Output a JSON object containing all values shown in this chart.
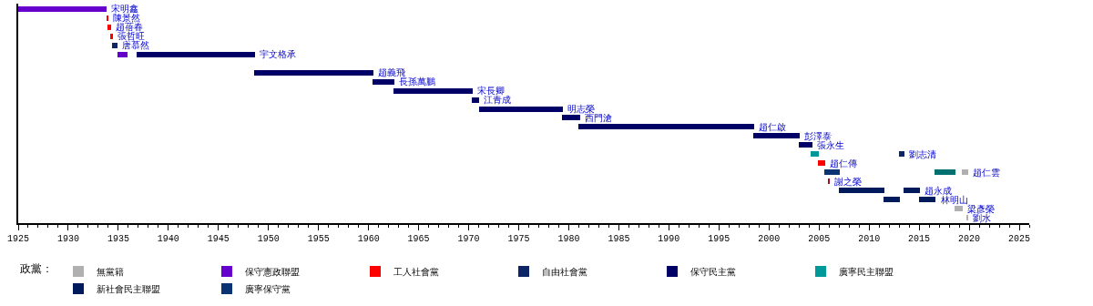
{
  "chart_data": {
    "type": "bar",
    "orientation": "horizontal",
    "legend_title": "政黨：",
    "legend": "bottom",
    "tick_labels": "x",
    "grid": false,
    "categories": [
      "宋明鑫",
      "陳景然",
      "趙蓓春",
      "張哲旺",
      "唐慕然",
      "宇文格承",
      null,
      "趙義飛",
      "長孫萬鵬",
      "宋長卿",
      "江青成",
      "明志榮",
      "西門滄",
      "趙仁啟",
      "彭澤泰",
      "張永生",
      "劉志清",
      "趙仁傳",
      "趙仁雲",
      "謝之榮",
      "趙永成",
      "林明山",
      "梁彥榮",
      "劉水"
    ],
    "xlim": [
      1925,
      2026
    ],
    "xticks": [
      1925,
      1930,
      1935,
      1940,
      1945,
      1950,
      1955,
      1960,
      1965,
      1970,
      1975,
      1980,
      1985,
      1990,
      1995,
      2000,
      2005,
      2010,
      2015,
      2020,
      2025
    ],
    "series": [
      {
        "name": "無黨籍",
        "color": "#b0b0b0",
        "base": [
          null,
          null,
          null,
          null,
          null,
          null,
          null,
          null,
          null,
          null,
          null,
          null,
          null,
          null,
          null,
          null,
          null,
          null,
          2019.3,
          null,
          null,
          null,
          2018.5,
          2019.8
        ],
        "values": [
          null,
          null,
          null,
          null,
          null,
          null,
          null,
          null,
          null,
          null,
          null,
          null,
          null,
          null,
          null,
          null,
          null,
          null,
          0.6,
          null,
          null,
          null,
          0.9,
          0.1
        ]
      },
      {
        "name": "保守憲政聯盟",
        "color": "#6600cc",
        "base": [
          1925,
          null,
          null,
          null,
          null,
          1934.9,
          null,
          null,
          null,
          null,
          null,
          null,
          null,
          null,
          null,
          null,
          null,
          null,
          null,
          null,
          null,
          null,
          null,
          null
        ],
        "values": [
          8.8,
          null,
          null,
          null,
          null,
          1.0,
          null,
          null,
          null,
          null,
          null,
          null,
          null,
          null,
          null,
          null,
          null,
          null,
          null,
          null,
          null,
          null,
          null,
          null
        ]
      },
      {
        "name": "工人社會黨",
        "color": "#ff0000",
        "base": [
          null,
          1933.8,
          1933.9,
          1934.2,
          null,
          null,
          null,
          null,
          null,
          null,
          null,
          null,
          null,
          null,
          null,
          null,
          null,
          2004.9,
          null,
          null,
          null,
          null,
          null,
          null
        ],
        "values": [
          null,
          0.2,
          0.4,
          0.3,
          null,
          null,
          null,
          null,
          null,
          null,
          null,
          null,
          null,
          null,
          null,
          null,
          null,
          0.7,
          null,
          null,
          null,
          null,
          null,
          null
        ]
      },
      {
        "name": "自由社會黨",
        "color": "#0d2466",
        "base": [
          null,
          null,
          null,
          null,
          1934.4,
          null,
          null,
          null,
          null,
          null,
          null,
          null,
          null,
          null,
          null,
          null,
          2013.0,
          null,
          null,
          null,
          null,
          null,
          null,
          null
        ],
        "values": [
          null,
          null,
          null,
          null,
          0.5,
          null,
          null,
          null,
          null,
          null,
          null,
          null,
          null,
          null,
          null,
          null,
          0.5,
          null,
          null,
          null,
          null,
          null,
          null,
          null
        ]
      },
      {
        "name": "保守民主黨",
        "color": "#000066",
        "base": [
          null,
          null,
          null,
          null,
          null,
          1936.8,
          null,
          1948.6,
          1960.4,
          1962.5,
          1970.3,
          1971.0,
          1979.3,
          1981.0,
          1998.4,
          2003.0,
          null,
          null,
          null,
          null,
          null,
          null,
          null,
          null
        ],
        "values": [
          null,
          null,
          null,
          null,
          null,
          11.9,
          null,
          11.9,
          2.2,
          7.9,
          0.7,
          8.4,
          1.8,
          17.5,
          4.7,
          1.3,
          null,
          null,
          null,
          null,
          null,
          null,
          null,
          null
        ]
      },
      {
        "name": "廣寧民主聯盟",
        "color": "#009999",
        "base": [
          null,
          null,
          null,
          null,
          null,
          null,
          null,
          null,
          null,
          null,
          null,
          null,
          null,
          null,
          null,
          null,
          2004.2,
          null,
          null,
          null,
          null,
          null,
          null,
          null
        ],
        "values": [
          null,
          null,
          null,
          null,
          null,
          null,
          null,
          null,
          null,
          null,
          null,
          null,
          null,
          null,
          null,
          null,
          0.8,
          null,
          null,
          null,
          null,
          null,
          null,
          null
        ]
      },
      {
        "name": "新社會民主聯盟",
        "color": "#001a5c",
        "base": [
          null,
          null,
          null,
          null,
          null,
          null,
          null,
          null,
          null,
          null,
          null,
          null,
          null,
          null,
          null,
          null,
          null,
          null,
          null,
          null,
          2007.0,
          2011.4,
          null,
          null
        ],
        "values": [
          null,
          null,
          null,
          null,
          null,
          null,
          null,
          null,
          null,
          null,
          null,
          null,
          null,
          null,
          null,
          null,
          null,
          null,
          null,
          null,
          4.5,
          1.7,
          null,
          null
        ]
      },
      {
        "name": "廣寧保守黨",
        "color": "#0a3373",
        "base": [
          null,
          null,
          null,
          null,
          null,
          null,
          null,
          null,
          null,
          null,
          null,
          null,
          null,
          null,
          null,
          null,
          null,
          null,
          2005.5,
          null,
          null,
          null,
          null,
          null
        ],
        "values": [
          null,
          null,
          null,
          null,
          null,
          null,
          null,
          null,
          null,
          null,
          null,
          null,
          null,
          null,
          null,
          null,
          null,
          null,
          1.6,
          null,
          null,
          null,
          null,
          null
        ]
      },
      {
        "color": "#001a5c",
        "base": [
          null,
          null,
          null,
          null,
          null,
          null,
          null,
          null,
          null,
          null,
          null,
          null,
          null,
          null,
          null,
          null,
          null,
          null,
          null,
          null,
          2013.4,
          2015.0,
          null,
          null
        ],
        "values": [
          null,
          null,
          null,
          null,
          null,
          null,
          null,
          null,
          null,
          null,
          null,
          null,
          null,
          null,
          null,
          null,
          null,
          null,
          null,
          null,
          1.7,
          1.6,
          null,
          null
        ]
      },
      {
        "color": "#a0102a",
        "base": [
          null,
          null,
          null,
          null,
          null,
          null,
          null,
          null,
          null,
          null,
          null,
          null,
          null,
          null,
          null,
          null,
          null,
          null,
          null,
          2005.9,
          null,
          null,
          null,
          null
        ],
        "values": [
          null,
          null,
          null,
          null,
          null,
          null,
          null,
          null,
          null,
          null,
          null,
          null,
          null,
          null,
          null,
          null,
          null,
          null,
          null,
          0.2,
          null,
          null,
          null,
          null
        ]
      },
      {
        "color": "#007070",
        "base": [
          null,
          null,
          null,
          null,
          null,
          null,
          null,
          null,
          null,
          null,
          null,
          null,
          null,
          null,
          null,
          null,
          null,
          null,
          2016.5,
          null,
          null,
          null,
          null,
          null
        ],
        "values": [
          null,
          null,
          null,
          null,
          null,
          null,
          null,
          null,
          null,
          null,
          null,
          null,
          null,
          null,
          null,
          null,
          null,
          null,
          2.1,
          null,
          null,
          null,
          null,
          null
        ]
      }
    ]
  }
}
